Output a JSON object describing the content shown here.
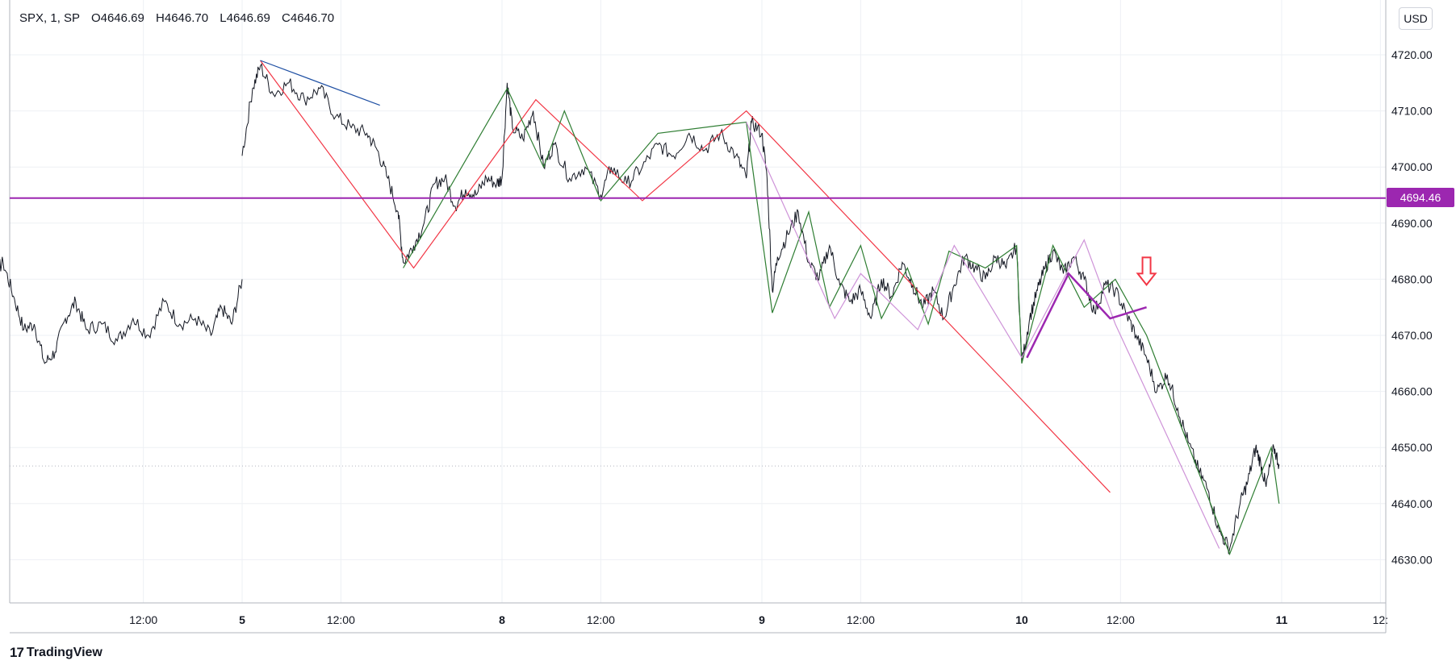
{
  "legend": {
    "symbol": "SPX, 1, SP",
    "open_label": "O",
    "open": "4646.69",
    "high_label": "H",
    "high": "4646.70",
    "low_label": "L",
    "low": "4646.69",
    "close_label": "C",
    "close": "4646.70"
  },
  "currency_button": "USD",
  "brand": "TradingView",
  "horizontal_line": {
    "price": 4694.46,
    "label": "4694.46",
    "color": "#9c27b0"
  },
  "colors": {
    "price": "#131722",
    "grid": "#eef0f4",
    "red": "#f23645",
    "green": "#2e7d32",
    "purple": "#9c27b0",
    "pink": "#ce93d8",
    "blue": "#1e4fa3",
    "arrow": "#f23645"
  },
  "chart_data": {
    "type": "line",
    "ylim": [
      4621,
      4727
    ],
    "y_ticks": [
      "4720.00",
      "4710.00",
      "4700.00",
      "4690.00",
      "4680.00",
      "4670.00",
      "4660.00",
      "4650.00",
      "4640.00",
      "4630.00"
    ],
    "x_ticks": [
      "12:00",
      "5",
      "12:00",
      "8",
      "12:00",
      "9",
      "12:00",
      "10",
      "12:00",
      "11",
      "12:"
    ],
    "price_series": [
      [
        0.0,
        4678
      ],
      [
        0.02,
        4683
      ],
      [
        0.05,
        4681
      ],
      [
        0.08,
        4683
      ],
      [
        0.12,
        4677
      ],
      [
        0.16,
        4671
      ],
      [
        0.2,
        4672
      ],
      [
        0.24,
        4665
      ],
      [
        0.28,
        4667
      ],
      [
        0.32,
        4673
      ],
      [
        0.36,
        4676
      ],
      [
        0.4,
        4671
      ],
      [
        0.46,
        4672
      ],
      [
        0.52,
        4669
      ],
      [
        0.58,
        4673
      ],
      [
        0.64,
        4670
      ],
      [
        0.7,
        4676
      ],
      [
        0.76,
        4672
      ],
      [
        0.82,
        4673
      ],
      [
        0.88,
        4670
      ],
      [
        0.92,
        4675
      ],
      [
        0.96,
        4672
      ],
      [
        1.0,
        4680
      ],
      [
        1.0,
        4702
      ],
      [
        1.04,
        4714
      ],
      [
        1.07,
        4718
      ],
      [
        1.12,
        4713
      ],
      [
        1.18,
        4715
      ],
      [
        1.24,
        4712
      ],
      [
        1.3,
        4714
      ],
      [
        1.36,
        4709
      ],
      [
        1.42,
        4707
      ],
      [
        1.48,
        4706
      ],
      [
        1.52,
        4703
      ],
      [
        1.56,
        4698
      ],
      [
        1.6,
        4692
      ],
      [
        1.62,
        4683
      ],
      [
        1.66,
        4686
      ],
      [
        1.7,
        4690
      ],
      [
        1.74,
        4697
      ],
      [
        1.78,
        4698
      ],
      [
        1.82,
        4693
      ],
      [
        1.86,
        4696
      ],
      [
        1.9,
        4695
      ],
      [
        1.94,
        4698
      ],
      [
        1.98,
        4697
      ],
      [
        2.0,
        4698
      ],
      [
        2.02,
        4715
      ],
      [
        2.04,
        4707
      ],
      [
        2.08,
        4705
      ],
      [
        2.12,
        4710
      ],
      [
        2.16,
        4700
      ],
      [
        2.2,
        4704
      ],
      [
        2.26,
        4698
      ],
      [
        2.32,
        4700
      ],
      [
        2.38,
        4695
      ],
      [
        2.42,
        4700
      ],
      [
        2.48,
        4697
      ],
      [
        2.54,
        4700
      ],
      [
        2.6,
        4704
      ],
      [
        2.66,
        4702
      ],
      [
        2.72,
        4706
      ],
      [
        2.78,
        4703
      ],
      [
        2.84,
        4706
      ],
      [
        2.9,
        4702
      ],
      [
        2.94,
        4698
      ],
      [
        2.96,
        4708
      ],
      [
        3.0,
        4706
      ],
      [
        3.02,
        4698
      ],
      [
        3.04,
        4678
      ],
      [
        3.06,
        4684
      ],
      [
        3.1,
        4688
      ],
      [
        3.14,
        4692
      ],
      [
        3.18,
        4683
      ],
      [
        3.22,
        4680
      ],
      [
        3.26,
        4686
      ],
      [
        3.3,
        4679
      ],
      [
        3.34,
        4676
      ],
      [
        3.38,
        4678
      ],
      [
        3.42,
        4673
      ],
      [
        3.46,
        4680
      ],
      [
        3.5,
        4677
      ],
      [
        3.54,
        4683
      ],
      [
        3.58,
        4679
      ],
      [
        3.62,
        4675
      ],
      [
        3.66,
        4678
      ],
      [
        3.7,
        4673
      ],
      [
        3.74,
        4679
      ],
      [
        3.78,
        4684
      ],
      [
        3.82,
        4682
      ],
      [
        3.86,
        4680
      ],
      [
        3.9,
        4684
      ],
      [
        3.94,
        4682
      ],
      [
        3.98,
        4686
      ],
      [
        4.0,
        4665
      ],
      [
        4.03,
        4673
      ],
      [
        4.06,
        4678
      ],
      [
        4.09,
        4682
      ],
      [
        4.12,
        4685
      ],
      [
        4.16,
        4681
      ],
      [
        4.2,
        4684
      ],
      [
        4.24,
        4680
      ],
      [
        4.28,
        4674
      ],
      [
        4.32,
        4679
      ],
      [
        4.36,
        4678
      ],
      [
        4.4,
        4674
      ],
      [
        4.44,
        4670
      ],
      [
        4.48,
        4666
      ],
      [
        4.52,
        4660
      ],
      [
        4.56,
        4663
      ],
      [
        4.6,
        4657
      ],
      [
        4.64,
        4651
      ],
      [
        4.68,
        4646
      ],
      [
        4.72,
        4642
      ],
      [
        4.76,
        4635
      ],
      [
        4.8,
        4632
      ],
      [
        4.84,
        4640
      ],
      [
        4.87,
        4644
      ],
      [
        4.9,
        4650
      ],
      [
        4.92,
        4647
      ],
      [
        4.94,
        4643
      ],
      [
        4.97,
        4650
      ],
      [
        4.99,
        4647
      ]
    ],
    "drawings": [
      {
        "color": "red",
        "points": [
          [
            1.07,
            4719
          ],
          [
            1.66,
            4682
          ],
          [
            2.13,
            4712
          ],
          [
            2.54,
            4694
          ],
          [
            2.94,
            4710
          ],
          [
            4.34,
            4642
          ]
        ]
      },
      {
        "color": "blue",
        "points": [
          [
            1.07,
            4719
          ],
          [
            1.53,
            4711
          ]
        ]
      },
      {
        "color": "green",
        "points": [
          [
            1.62,
            4682
          ],
          [
            2.02,
            4714
          ],
          [
            2.16,
            4700
          ],
          [
            2.24,
            4710
          ],
          [
            2.38,
            4694
          ],
          [
            2.6,
            4706
          ],
          [
            2.94,
            4708
          ],
          [
            3.04,
            4674
          ],
          [
            3.18,
            4692
          ],
          [
            3.26,
            4675
          ],
          [
            3.38,
            4686
          ],
          [
            3.46,
            4673
          ],
          [
            3.56,
            4682
          ],
          [
            3.64,
            4672
          ],
          [
            3.72,
            4685
          ],
          [
            3.86,
            4682
          ],
          [
            3.98,
            4686
          ],
          [
            4.0,
            4665
          ],
          [
            4.12,
            4686
          ],
          [
            4.24,
            4675
          ],
          [
            4.36,
            4680
          ],
          [
            4.48,
            4670
          ],
          [
            4.8,
            4631
          ],
          [
            4.96,
            4650
          ],
          [
            4.99,
            4640
          ]
        ]
      },
      {
        "color": "pink",
        "points": [
          [
            2.94,
            4708
          ],
          [
            3.28,
            4673
          ],
          [
            3.38,
            4681
          ],
          [
            3.6,
            4671
          ],
          [
            3.74,
            4686
          ],
          [
            4.0,
            4666
          ],
          [
            4.24,
            4687
          ],
          [
            4.36,
            4672
          ],
          [
            4.76,
            4632
          ]
        ]
      },
      {
        "color": "purple",
        "points": [
          [
            4.02,
            4666
          ],
          [
            4.18,
            4681
          ],
          [
            4.34,
            4673
          ],
          [
            4.48,
            4675
          ]
        ],
        "width": 2.5
      }
    ],
    "arrow": {
      "x": 4.48,
      "y": 4679
    }
  }
}
